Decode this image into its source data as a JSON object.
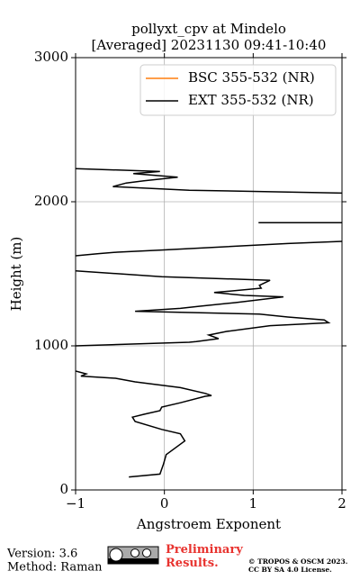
{
  "chart_data": {
    "type": "profile",
    "title": "pollyxt_cpv at Mindelo",
    "subtitle": "[Averaged] 20231130 09:41-10:40",
    "xlabel": "Angstroem Exponent",
    "ylabel": "Height (m)",
    "xlim": [
      -1,
      2
    ],
    "xticks": [
      {
        "value": -1,
        "label": "−1"
      },
      0,
      1,
      2
    ],
    "ylim": [
      0,
      3000
    ],
    "yticks": [
      0,
      1000,
      2000,
      3000
    ],
    "grid": true,
    "legend": "upper right",
    "series": [
      {
        "name": "BSC 355-532 (NR)",
        "color": "#ff7f0e",
        "x": [],
        "y": []
      },
      {
        "name": "EXT 355-532 (NR)",
        "color": "#000000",
        "x": [
          -0.4,
          -0.05,
          -0.01,
          0.02,
          0.23,
          0.18,
          -0.03,
          -0.33,
          -0.36,
          -0.23,
          -0.05,
          -0.03,
          0.18,
          0.46,
          0.53,
          0.46,
          0.18,
          -0.33,
          -0.55,
          -0.94,
          -0.88,
          -1.0,
          null,
          -1.0,
          0.28,
          0.36,
          0.61,
          0.5,
          0.7,
          1.19,
          1.85,
          1.8,
          1.39,
          1.07,
          -0.33,
          0.18,
          0.4,
          0.8,
          1.34,
          0.9,
          0.56,
          1.09,
          1.07,
          1.14,
          1.19,
          -0.03,
          -1.0,
          null,
          -1.0,
          -0.74,
          -0.53,
          -0.03,
          1.39,
          2.0,
          null,
          1.06,
          2.0,
          null,
          2.0,
          0.28,
          -0.58,
          -0.43,
          -0.23,
          0.15,
          -0.35,
          -0.05,
          -1.0
        ],
        "y": [
          90,
          110,
          180,
          245,
          340,
          390,
          420,
          475,
          505,
          525,
          550,
          575,
          605,
          650,
          655,
          670,
          710,
          750,
          775,
          790,
          805,
          825,
          null,
          1000,
          1025,
          1030,
          1050,
          1075,
          1100,
          1140,
          1160,
          1180,
          1200,
          1220,
          1240,
          1260,
          1275,
          1300,
          1340,
          1350,
          1370,
          1400,
          1420,
          1440,
          1455,
          1480,
          1520,
          null,
          1625,
          1640,
          1650,
          1665,
          1710,
          1725,
          null,
          1855,
          1855,
          null,
          2060,
          2080,
          2105,
          2130,
          2145,
          2170,
          2195,
          2210,
          2230
        ]
      }
    ]
  },
  "footer": {
    "version": "Version: 3.6",
    "method": "Method: Raman",
    "preliminary": "Preliminary Results.",
    "copyright": "© TROPOS & OSCM 2023.",
    "license": "CC BY SA 4.0 License."
  }
}
